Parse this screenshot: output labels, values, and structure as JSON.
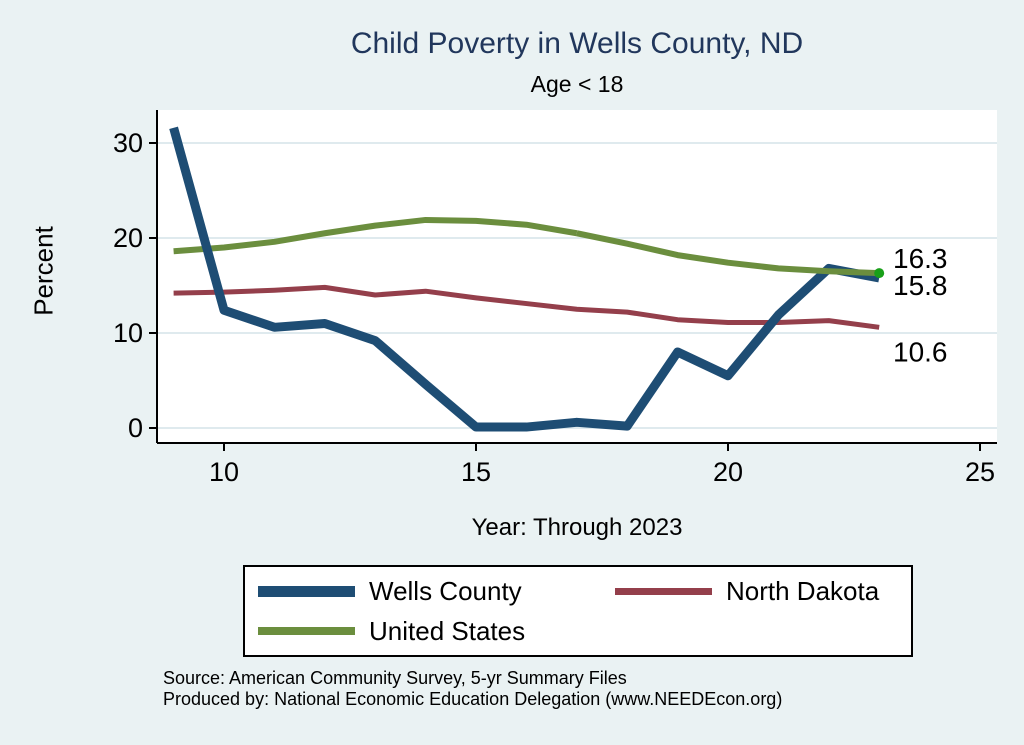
{
  "chart_data": {
    "type": "line",
    "title": "Child Poverty in Wells County, ND",
    "subtitle": "Age < 18",
    "xlabel": "Year: Through 2023",
    "ylabel": "Percent",
    "background": "#eaf2f3",
    "plot_background": "#ffffff",
    "grid_color": "#dfeaee",
    "title_color": "#21375c",
    "axis_color": "#000000",
    "grid": "horizontal",
    "legend_position": "bottom",
    "x_ticks": [
      10,
      15,
      20,
      25
    ],
    "y_ticks": [
      0,
      10,
      20,
      30
    ],
    "xlim": [
      8.7,
      25.3
    ],
    "ylim": [
      -1.6,
      33.6
    ],
    "years": [
      2009,
      2010,
      2011,
      2012,
      2013,
      2014,
      2015,
      2016,
      2017,
      2018,
      2019,
      2020,
      2021,
      2022,
      2023
    ],
    "series": [
      {
        "name": "Wells County",
        "color": "#1e4d74",
        "line_width": 9,
        "values": [
          31.6,
          12.4,
          10.6,
          11.0,
          9.2,
          4.6,
          0.1,
          0.1,
          0.6,
          0.2,
          8.0,
          5.5,
          11.9,
          16.8,
          15.8
        ],
        "end_label": "15.8"
      },
      {
        "name": "North Dakota",
        "color": "#943f4b",
        "line_width": 5,
        "values": [
          14.2,
          14.3,
          14.5,
          14.8,
          14.0,
          14.4,
          13.7,
          13.1,
          12.5,
          12.2,
          11.4,
          11.1,
          11.1,
          11.3,
          10.6
        ],
        "end_label": "10.6"
      },
      {
        "name": "United States",
        "color": "#6b8e3e",
        "line_width": 6,
        "values": [
          18.6,
          19.0,
          19.6,
          20.5,
          21.3,
          21.9,
          21.8,
          21.4,
          20.5,
          19.4,
          18.2,
          17.4,
          16.8,
          16.5,
          16.3
        ],
        "end_label": "16.3",
        "end_marker_color": "#19a019"
      }
    ]
  },
  "footer": {
    "line1": "Source: American Community Survey, 5-yr Summary Files",
    "line2": "Produced by: National Economic Education Delegation (www.NEEDEcon.org)"
  }
}
